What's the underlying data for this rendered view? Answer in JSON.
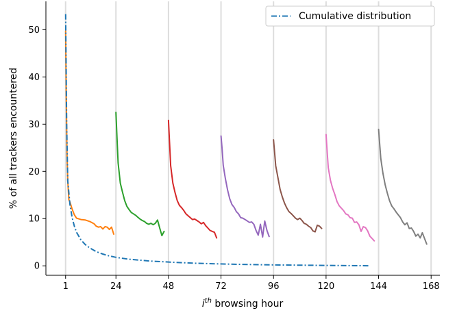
{
  "chart_data": {
    "type": "line",
    "xlabel": "i",
    "xlabel_sup": "th",
    "xlabel_rest": " browsing hour",
    "ylabel": "% of all trackers encountered",
    "xlim": [
      -8,
      172
    ],
    "ylim": [
      -2,
      56
    ],
    "xticks": [
      1,
      24,
      48,
      72,
      96,
      120,
      144,
      168
    ],
    "yticks": [
      0,
      10,
      20,
      30,
      40,
      50
    ],
    "vgrid_lines": [
      1,
      24,
      48,
      72,
      96,
      120,
      144,
      168
    ],
    "legend": {
      "placement": "top-right",
      "label": "Cumulative distribution"
    },
    "cumulative": {
      "name": "Cumulative distribution",
      "color": "#1f77b4",
      "x": [
        1,
        1.5,
        2,
        3,
        4,
        5,
        6,
        8,
        10,
        12,
        15,
        18,
        20,
        24,
        30,
        40,
        50,
        60,
        70,
        80,
        90,
        100,
        110,
        120,
        130,
        140
      ],
      "y": [
        53.3,
        30,
        18,
        13,
        10.2,
        8.4,
        7.1,
        5.5,
        4.5,
        3.8,
        3.0,
        2.5,
        2.2,
        1.8,
        1.4,
        1.0,
        0.75,
        0.55,
        0.42,
        0.32,
        0.24,
        0.18,
        0.13,
        0.09,
        0.05,
        0.02
      ]
    },
    "series": [
      {
        "color": "#ff7f0e",
        "x": [
          1,
          1.3,
          1.6,
          2,
          2.5,
          3,
          4,
          5,
          6,
          8,
          10,
          12,
          14,
          15,
          16,
          17,
          18,
          19,
          20,
          21,
          22,
          23
        ],
        "y": [
          49.7,
          36,
          24,
          18,
          14,
          13.5,
          12,
          10.8,
          10.1,
          9.8,
          9.7,
          9.4,
          8.9,
          8.4,
          8.2,
          8.3,
          7.8,
          8.3,
          8.2,
          7.7,
          8.2,
          6.7
        ]
      },
      {
        "color": "#2ca02c",
        "x": [
          24,
          24.5,
          25,
          26,
          27,
          28,
          29,
          30,
          31,
          32,
          33,
          34,
          35,
          36,
          37,
          38,
          39,
          40,
          41,
          42,
          43,
          44,
          45,
          46
        ],
        "y": [
          32.5,
          27,
          21.8,
          17.5,
          15.6,
          13.8,
          12.6,
          11.9,
          11.3,
          11,
          10.7,
          10.3,
          9.9,
          9.6,
          9.4,
          9.0,
          8.8,
          9.0,
          8.7,
          9.0,
          9.7,
          8.0,
          6.4,
          7.3
        ]
      },
      {
        "color": "#d62728",
        "x": [
          48,
          48.5,
          49,
          50,
          51,
          52,
          53,
          54,
          55,
          56,
          57,
          58,
          59,
          60,
          61,
          62,
          63,
          64,
          65,
          66,
          67,
          68,
          69,
          70
        ],
        "y": [
          30.8,
          26,
          21.2,
          17.5,
          15.5,
          13.8,
          12.8,
          12.3,
          11.7,
          11,
          10.6,
          10.2,
          9.8,
          9.9,
          9.6,
          9.3,
          8.9,
          9.2,
          8.5,
          8.0,
          7.5,
          7.3,
          7.1,
          5.9
        ]
      },
      {
        "color": "#9467bd",
        "x": [
          72,
          72.5,
          73,
          74,
          75,
          76,
          77,
          78,
          79,
          80,
          81,
          82,
          83,
          84,
          85,
          86,
          87,
          88,
          89,
          90,
          91,
          92,
          93,
          94
        ],
        "y": [
          27.5,
          24.7,
          21.3,
          18.5,
          16.1,
          14.2,
          13,
          12.4,
          11.5,
          11,
          10.2,
          10.1,
          9.8,
          9.5,
          9.2,
          9.3,
          8.8,
          7.5,
          6.5,
          8.8,
          6.1,
          9.5,
          7.5,
          6.2
        ]
      },
      {
        "color": "#8c564b",
        "x": [
          96,
          96.5,
          97,
          98,
          99,
          100,
          101,
          102,
          103,
          104,
          105,
          106,
          107,
          108,
          109,
          110,
          111,
          112,
          113,
          114,
          115,
          116,
          117,
          118
        ],
        "y": [
          26.7,
          24,
          21.2,
          18.7,
          16.2,
          14.6,
          13.3,
          12.3,
          11.5,
          11.1,
          10.6,
          10.1,
          9.8,
          10.1,
          9.6,
          9.0,
          8.8,
          8.4,
          8.1,
          7.4,
          7.2,
          8.6,
          8.4,
          7.9
        ]
      },
      {
        "color": "#e377c2",
        "x": [
          120,
          120.5,
          121,
          122,
          123,
          124,
          125,
          126,
          127,
          128,
          129,
          130,
          131,
          132,
          133,
          134,
          135,
          136,
          137,
          138,
          139,
          140,
          141,
          142
        ],
        "y": [
          27.8,
          24.2,
          20.8,
          18.1,
          16.4,
          15.1,
          13.6,
          12.7,
          12.2,
          11.7,
          11,
          10.8,
          10.2,
          10.1,
          9.2,
          9.3,
          8.7,
          7.3,
          8.3,
          8.1,
          7.4,
          6.3,
          5.8,
          5.3
        ]
      },
      {
        "color": "#7f7f7f",
        "x": [
          144,
          144.5,
          145,
          146,
          147,
          148,
          149,
          150,
          151,
          152,
          153,
          154,
          155,
          156,
          157,
          158,
          159,
          160,
          161,
          162,
          163,
          164,
          165,
          166
        ],
        "y": [
          28.9,
          25.7,
          22.7,
          19.6,
          17.2,
          15.4,
          13.8,
          12.7,
          12.1,
          11.4,
          10.8,
          10.2,
          9.3,
          8.7,
          9.1,
          7.9,
          8.0,
          7.3,
          6.3,
          6.7,
          5.9,
          7.0,
          5.8,
          4.6
        ]
      }
    ]
  }
}
